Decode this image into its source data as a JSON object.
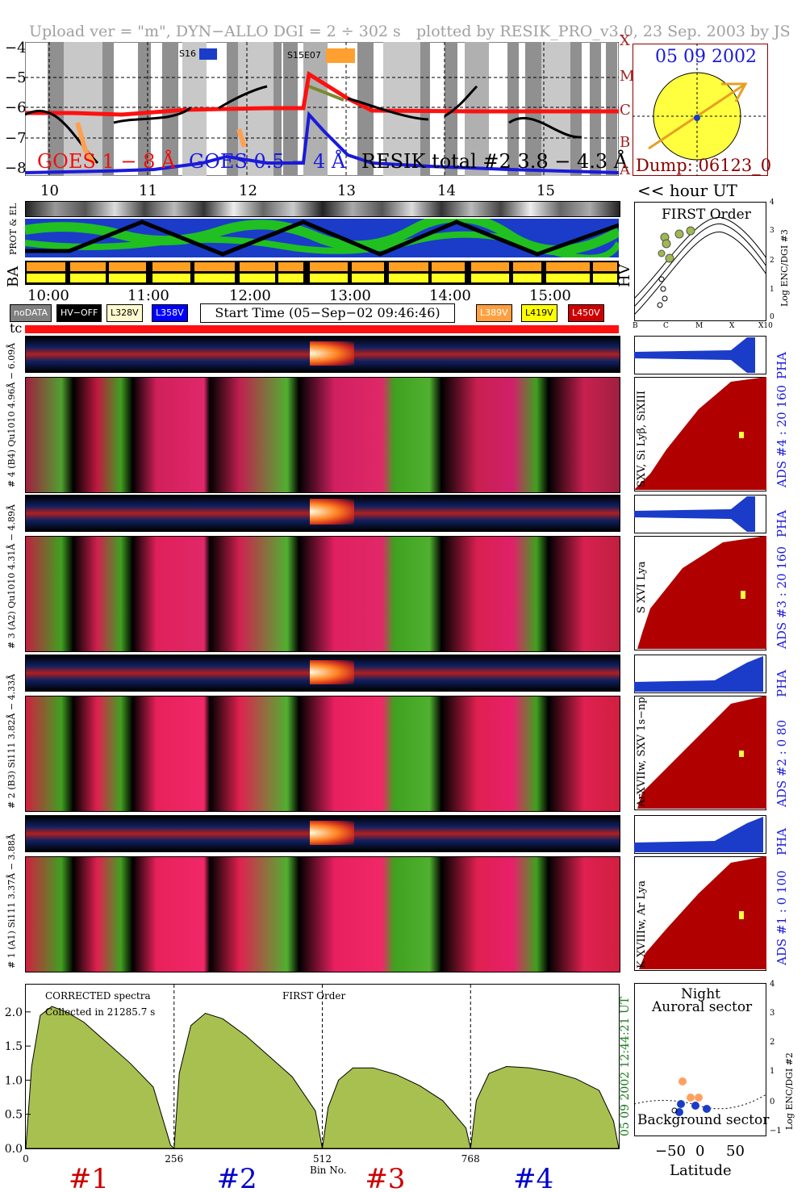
{
  "header": {
    "left": "Upload ver = \"m\", DYN−ALLO DGI =   2 ÷ 302 s",
    "right": "plotted by RESIK_PRO_v3.0, 23 Sep. 2003 by JS"
  },
  "goes": {
    "y_ticks": [
      "−4",
      "−5",
      "−6",
      "−7",
      "−8"
    ],
    "class_labels": [
      "X",
      "M",
      "C",
      "B",
      "A"
    ],
    "legend_goes1": "GOES 1 − 8 Å",
    "legend_goes2": "GOES 0.5 − 4 Å",
    "legend_resik": "RESIK total #2  3.8 − 4.3 Å",
    "tags": [
      "S16",
      "S15E07"
    ],
    "x_ticks": [
      "10",
      "11",
      "12",
      "13",
      "14",
      "15"
    ],
    "hour_label": "<< hour UT"
  },
  "sun": {
    "date": "05 09 2002",
    "dump": "Dump: 06123_0"
  },
  "status": {
    "row1_label": "PROT & EL",
    "row2_label": "BA",
    "hv_label": "HV",
    "time_ticks": [
      "10:00",
      "11:00",
      "12:00",
      "13:00",
      "14:00",
      "15:00"
    ],
    "legend": [
      "noDATA",
      "HV−OFF",
      "L328V",
      "L358V",
      "L389V",
      "L419V",
      "L450V"
    ],
    "legend_colors": [
      "#808080",
      "#000000",
      "#fffacd",
      "#0000ff",
      "#ffa040",
      "#ffff00",
      "#cc0000"
    ],
    "start_time": "Start Time (05−Sep−02 09:46:46)"
  },
  "first_order": {
    "title": "FIRST Order",
    "ylabel": "Log ENC/DGI #3",
    "y_ticks": [
      "4",
      "3",
      "2",
      "1",
      "0"
    ],
    "x_ticks": [
      "B",
      "C",
      "M",
      "X",
      "X10"
    ]
  },
  "channels": {
    "tc_label": "tc",
    "strip_labels": [
      "# 4 (B4) Qu1010 4.96Å − 6.09Å",
      "# 3 (A2) Qu1010 4.31Å − 4.89Å",
      "# 2 (B3) Si111 3.82Å − 4.33Å",
      "# 1 (A1) Si111 3.37Å − 3.88Å"
    ],
    "pha_label": "PHA",
    "ads": [
      "ADS #4 :   20 160",
      "ADS #3 :   20 160",
      "ADS #2 :   0  80",
      "ADS #1 :   0 100"
    ],
    "lines": [
      "SXV, Si Lyβ, SiXIII",
      "S XVI Lya",
      "ArXVIIw, SXV 1s−np",
      "K XVIIIw, Ar Lya"
    ]
  },
  "chart_data": {
    "type": "area",
    "title": "FIRST Order",
    "subtitle": "CORRECTED spectra",
    "collected": "Collected in 21285.7 s",
    "xlabel": "Bin No.",
    "ylabel": "",
    "xlim": [
      0,
      1024
    ],
    "ylim": [
      0,
      2.4
    ],
    "x_ticks": [
      "0",
      "256",
      "512",
      "768"
    ],
    "y_ticks": [
      "0.0",
      "0.5",
      "1.0",
      "1.5",
      "2.0"
    ],
    "channels": [
      "#1",
      "#2",
      "#3",
      "#4"
    ],
    "channel_colors": [
      "#cc0000",
      "#0000cc",
      "#cc0000",
      "#0000cc"
    ],
    "time_stamp": "05 09 2002   12:44:21 UT",
    "series": [
      {
        "name": "#1",
        "x": [
          0,
          10,
          25,
          45,
          70,
          100,
          140,
          180,
          220,
          250,
          256
        ],
        "values": [
          0.0,
          1.2,
          1.95,
          2.08,
          2.0,
          1.85,
          1.55,
          1.25,
          0.9,
          0.05,
          0.0
        ]
      },
      {
        "name": "#2",
        "x": [
          256,
          265,
          285,
          310,
          340,
          380,
          420,
          460,
          500,
          512
        ],
        "values": [
          0.0,
          1.1,
          1.8,
          1.98,
          1.9,
          1.65,
          1.35,
          1.05,
          0.55,
          0.0
        ]
      },
      {
        "name": "#3",
        "x": [
          512,
          522,
          540,
          565,
          600,
          640,
          680,
          720,
          760,
          768
        ],
        "values": [
          0.0,
          0.6,
          1.0,
          1.18,
          1.18,
          1.08,
          0.92,
          0.7,
          0.3,
          0.0
        ]
      },
      {
        "name": "#4",
        "x": [
          768,
          778,
          800,
          830,
          870,
          910,
          950,
          990,
          1015,
          1024
        ],
        "values": [
          0.0,
          0.7,
          1.1,
          1.2,
          1.18,
          1.12,
          1.02,
          0.85,
          0.4,
          0.0
        ]
      }
    ]
  },
  "latitude_panel": {
    "night": "Night",
    "auroral": "Auroral sector",
    "background": "Background sector",
    "xlabel": "Latitude",
    "ylabel": "Log ENC/DGI #2",
    "x_ticks": [
      "−50",
      "0",
      "50"
    ],
    "y_ticks": [
      "4",
      "3",
      "2",
      "1",
      "0",
      "−1"
    ]
  }
}
